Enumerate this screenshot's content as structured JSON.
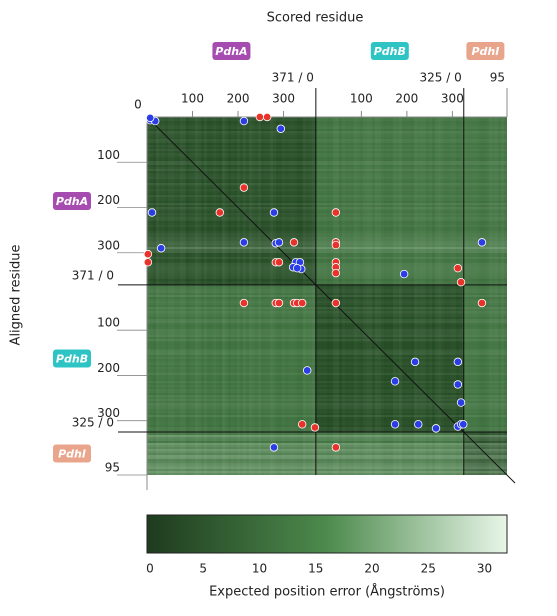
{
  "chart_data": {
    "type": "scatter",
    "title": "Scored residue",
    "y_label": "Aligned residue",
    "chains": [
      {
        "name": "PdhA",
        "start": 0,
        "end": 371,
        "color": "#a64bb0"
      },
      {
        "name": "PdhB",
        "start": 371,
        "end": 696,
        "color": "#2fc4c4"
      },
      {
        "name": "PdhI",
        "start": 696,
        "end": 791,
        "color": "#e9a58c"
      }
    ],
    "xlim": [
      0,
      791
    ],
    "ylim": [
      0,
      791
    ],
    "xticks": [
      0,
      100,
      200,
      300,
      {
        "value": 371,
        "label": "371 / 0"
      },
      {
        "value": 471,
        "label": "100"
      },
      {
        "value": 571,
        "label": "200"
      },
      {
        "value": 671,
        "label": "300"
      },
      {
        "value": 696,
        "label": "325 / 0"
      },
      {
        "value": 791,
        "label": "95"
      }
    ],
    "yticks": [
      100,
      200,
      300,
      {
        "value": 371,
        "label": "371 / 0"
      },
      {
        "value": 471,
        "label": "100"
      },
      {
        "value": 571,
        "label": "200"
      },
      {
        "value": 671,
        "label": "300"
      },
      {
        "value": 696,
        "label": "325 / 0"
      },
      {
        "value": 791,
        "label": "95"
      }
    ],
    "series": [
      {
        "color": "#e8332a",
        "x": [
          248,
          264,
          213,
          160,
          415,
          323,
          415,
          415,
          2,
          2,
          283,
          290,
          415,
          415,
          415,
          683,
          690,
          213,
          283,
          290,
          323,
          330,
          341,
          415,
          736,
          341,
          369,
          415
        ],
        "y": [
          0,
          0,
          156,
          211,
          211,
          277,
          277,
          283,
          303,
          321,
          321,
          321,
          321,
          332,
          345,
          334,
          365,
          411,
          411,
          411,
          411,
          411,
          411,
          411,
          411,
          679,
          686,
          730
        ]
      },
      {
        "color": "#2b3ee6",
        "x": [
          7,
          18,
          7,
          213,
          294,
          11,
          279,
          31,
          213,
          283,
          290,
          736,
          327,
          336,
          321,
          339,
          330,
          565,
          352,
          589,
          545,
          683,
          683,
          690,
          545,
          596,
          635,
          683,
          690,
          695,
          279
        ],
        "y": [
          7,
          9,
          2,
          9,
          26,
          211,
          211,
          290,
          277,
          279,
          277,
          277,
          321,
          321,
          332,
          336,
          334,
          347,
          560,
          541,
          584,
          541,
          591,
          631,
          679,
          679,
          688,
          684,
          679,
          679,
          730
        ]
      }
    ],
    "colorbar": {
      "label": "Expected position error (Ångströms)",
      "lim": [
        0,
        32
      ],
      "ticks": [
        0,
        5,
        10,
        15,
        20,
        25,
        30
      ],
      "colors": [
        "#1e3b1e",
        "#4d8a4d",
        "#e8f6e8"
      ]
    }
  }
}
